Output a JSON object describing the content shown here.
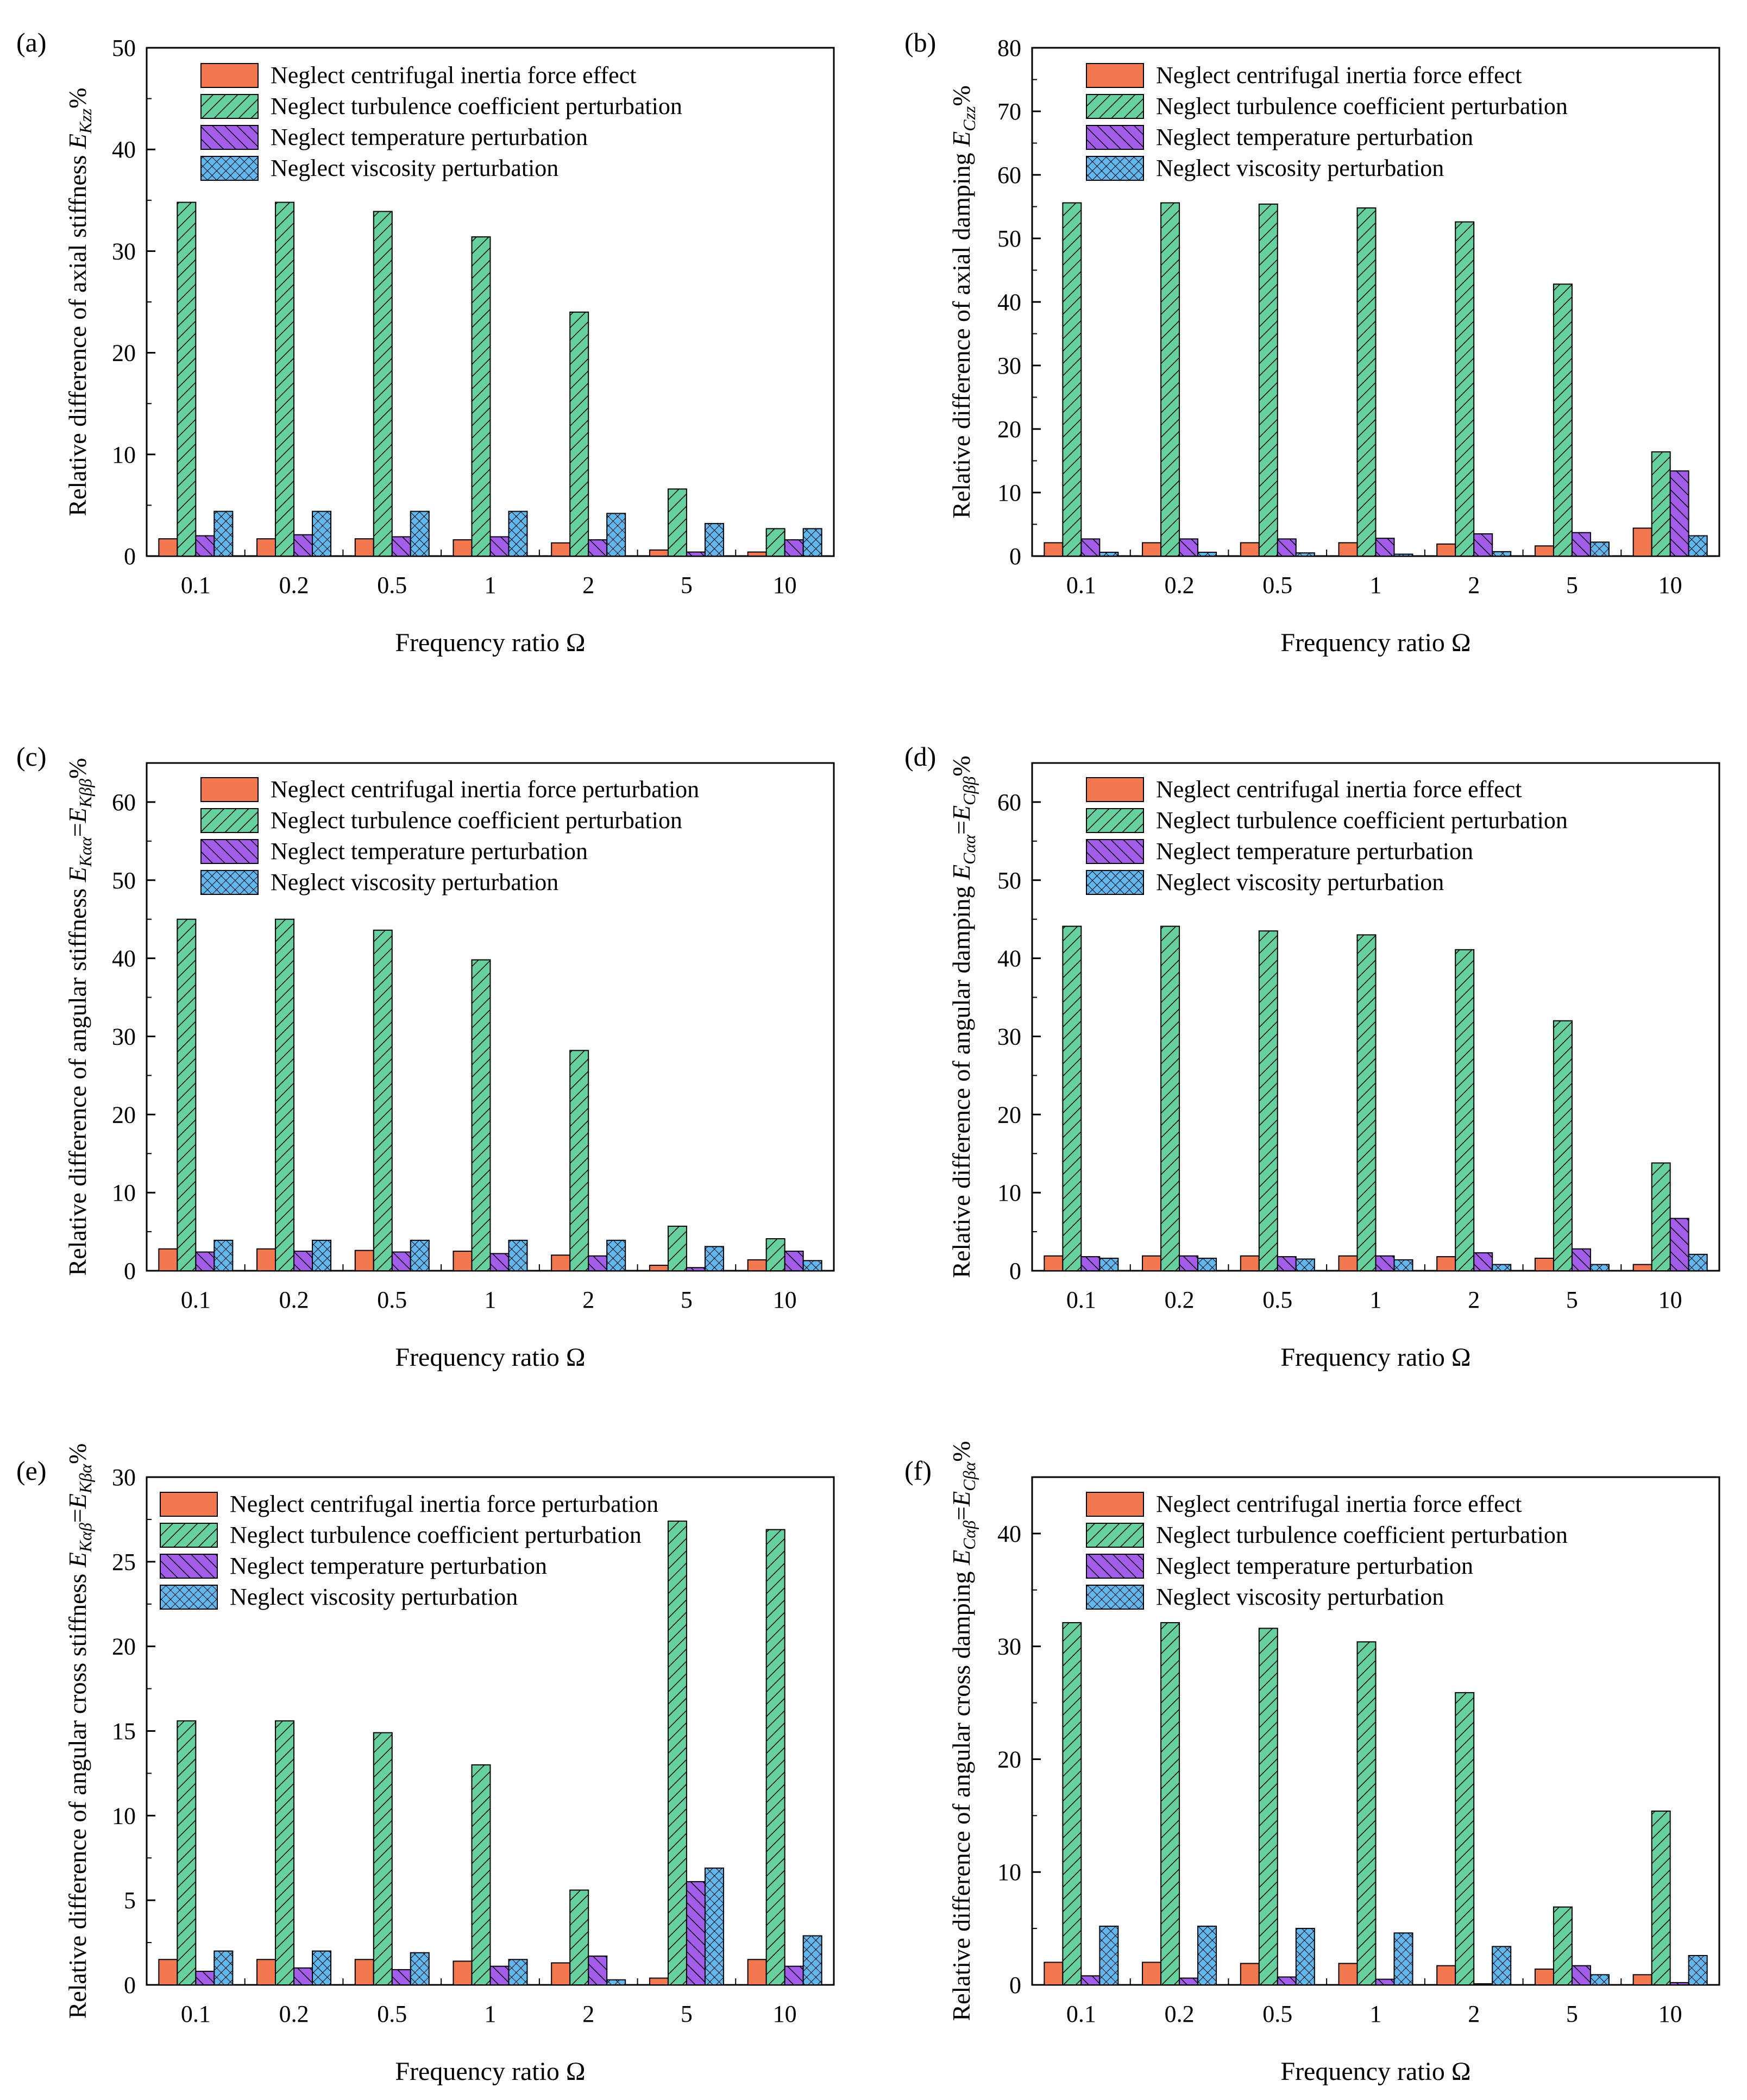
{
  "colors": {
    "series": [
      "#F4784F",
      "#66D19E",
      "#A45CEB",
      "#61B7F0"
    ],
    "stroke": "#000000"
  },
  "chart_data": [
    {
      "panel": "(a)",
      "type": "bar",
      "ylabel": "Relative difference of axial stiffness E",
      "ylabel_sub": "Kzz",
      "ylabel_suffix": "%",
      "xlabel": "Frequency ratio Ω",
      "categories": [
        "0.1",
        "0.2",
        "0.5",
        "1",
        "2",
        "5",
        "10"
      ],
      "ylim": [
        0,
        50
      ],
      "yticks": [
        0,
        10,
        20,
        30,
        40,
        50
      ],
      "legend_position": "top-right",
      "series": [
        {
          "name": "Neglect centrifugal inertia force effect",
          "values": [
            1.7,
            1.7,
            1.7,
            1.6,
            1.3,
            0.6,
            0.4
          ]
        },
        {
          "name": "Neglect turbulence coefficient perturbation",
          "values": [
            34.8,
            34.8,
            33.9,
            31.4,
            24.0,
            6.6,
            2.7
          ]
        },
        {
          "name": "Neglect temperature perturbation",
          "values": [
            2.0,
            2.1,
            1.9,
            1.9,
            1.6,
            0.4,
            1.6
          ]
        },
        {
          "name": "Neglect viscosity perturbation",
          "values": [
            4.4,
            4.4,
            4.4,
            4.4,
            4.2,
            3.2,
            2.7
          ]
        }
      ]
    },
    {
      "panel": "(b)",
      "type": "bar",
      "ylabel": "Relative difference of axial damping E",
      "ylabel_sub": "Czz",
      "ylabel_suffix": "%",
      "xlabel": "Frequency ratio Ω",
      "categories": [
        "0.1",
        "0.2",
        "0.5",
        "1",
        "2",
        "5",
        "10"
      ],
      "ylim": [
        0,
        80
      ],
      "yticks": [
        0,
        10,
        20,
        30,
        40,
        50,
        60,
        70,
        80
      ],
      "legend_position": "top-right",
      "series": [
        {
          "name": "Neglect centrifugal inertia force effect",
          "values": [
            2.1,
            2.1,
            2.1,
            2.1,
            1.9,
            1.6,
            4.4
          ]
        },
        {
          "name": "Neglect turbulence coefficient perturbation",
          "values": [
            55.6,
            55.6,
            55.4,
            54.8,
            52.6,
            42.8,
            16.4
          ]
        },
        {
          "name": "Neglect temperature perturbation",
          "values": [
            2.7,
            2.7,
            2.7,
            2.8,
            3.5,
            3.7,
            13.4
          ]
        },
        {
          "name": "Neglect viscosity perturbation",
          "values": [
            0.6,
            0.6,
            0.5,
            0.3,
            0.7,
            2.2,
            3.2
          ]
        }
      ]
    },
    {
      "panel": "(c)",
      "type": "bar",
      "ylabel": "Relative difference of  angular stiffness E",
      "ylabel_sub": "Kαα",
      "ylabel_mid": "=E",
      "ylabel_sub2": "Kββ",
      "ylabel_suffix": "%",
      "xlabel": "Frequency ratio Ω",
      "categories": [
        "0.1",
        "0.2",
        "0.5",
        "1",
        "2",
        "5",
        "10"
      ],
      "ylim": [
        0,
        65
      ],
      "yticks": [
        0,
        10,
        20,
        30,
        40,
        50,
        60
      ],
      "legend_position": "top-right",
      "series": [
        {
          "name": "Neglect centrifugal inertia force perturbation",
          "values": [
            2.8,
            2.8,
            2.6,
            2.5,
            2.0,
            0.7,
            1.4
          ]
        },
        {
          "name": "Neglect turbulence coefficient perturbation",
          "values": [
            45.0,
            45.0,
            43.6,
            39.8,
            28.2,
            5.7,
            4.1
          ]
        },
        {
          "name": "Neglect temperature perturbation",
          "values": [
            2.4,
            2.5,
            2.4,
            2.2,
            1.9,
            0.4,
            2.5
          ]
        },
        {
          "name": "Neglect viscosity perturbation",
          "values": [
            3.9,
            3.9,
            3.9,
            3.9,
            3.9,
            3.1,
            1.3
          ]
        }
      ]
    },
    {
      "panel": "(d)",
      "type": "bar",
      "ylabel": "Relative difference of angular damping E",
      "ylabel_sub": "Cαα",
      "ylabel_mid": "=E",
      "ylabel_sub2": "Cββ",
      "ylabel_suffix": "%",
      "xlabel": "Frequency ratio Ω",
      "categories": [
        "0.1",
        "0.2",
        "0.5",
        "1",
        "2",
        "5",
        "10"
      ],
      "ylim": [
        0,
        65
      ],
      "yticks": [
        0,
        10,
        20,
        30,
        40,
        50,
        60
      ],
      "legend_position": "top-right",
      "series": [
        {
          "name": "Neglect centrifugal inertia force effect",
          "values": [
            1.9,
            1.9,
            1.9,
            1.9,
            1.8,
            1.6,
            0.8
          ]
        },
        {
          "name": "Neglect turbulence coefficient perturbation",
          "values": [
            44.1,
            44.1,
            43.5,
            43.0,
            41.1,
            32.0,
            13.8
          ]
        },
        {
          "name": "Neglect temperature perturbation",
          "values": [
            1.8,
            1.9,
            1.8,
            1.9,
            2.3,
            2.8,
            6.7
          ]
        },
        {
          "name": "Neglect viscosity perturbation",
          "values": [
            1.6,
            1.6,
            1.5,
            1.4,
            0.8,
            0.8,
            2.1
          ]
        }
      ]
    },
    {
      "panel": "(e)",
      "type": "bar",
      "ylabel": "Relative difference of  angular cross stiffness E",
      "ylabel_sub": "Kαβ",
      "ylabel_mid": "=E",
      "ylabel_sub2": "Kβα",
      "ylabel_suffix": "%",
      "xlabel": "Frequency ratio Ω",
      "categories": [
        "0.1",
        "0.2",
        "0.5",
        "1",
        "2",
        "5",
        "10"
      ],
      "ylim": [
        0,
        30
      ],
      "yticks": [
        0,
        5,
        10,
        15,
        20,
        25,
        30
      ],
      "legend_position": "top-left",
      "series": [
        {
          "name": "Neglect centrifugal inertia force perturbation",
          "values": [
            1.5,
            1.5,
            1.5,
            1.4,
            1.3,
            0.4,
            1.5
          ]
        },
        {
          "name": "Neglect turbulence coefficient perturbation",
          "values": [
            15.6,
            15.6,
            14.9,
            13.0,
            5.6,
            27.4,
            26.9
          ]
        },
        {
          "name": "Neglect temperature perturbation",
          "values": [
            0.8,
            1.0,
            0.9,
            1.1,
            1.7,
            6.1,
            1.1
          ]
        },
        {
          "name": "Neglect viscosity perturbation",
          "values": [
            2.0,
            2.0,
            1.9,
            1.5,
            0.3,
            6.9,
            2.9
          ]
        }
      ]
    },
    {
      "panel": "(f)",
      "type": "bar",
      "ylabel": "Relative difference of  angular cross damping E",
      "ylabel_sub": "Cαβ",
      "ylabel_mid": "=E",
      "ylabel_sub2": "Cβα",
      "ylabel_suffix": "%",
      "xlabel": "Frequency ratio Ω",
      "categories": [
        "0.1",
        "0.2",
        "0.5",
        "1",
        "2",
        "5",
        "10"
      ],
      "ylim": [
        0,
        45
      ],
      "yticks": [
        0,
        10,
        20,
        30,
        40
      ],
      "legend_position": "top-right",
      "series": [
        {
          "name": "Neglect centrifugal inertia force effect",
          "values": [
            2.0,
            2.0,
            1.9,
            1.9,
            1.7,
            1.4,
            0.9
          ]
        },
        {
          "name": "Neglect turbulence coefficient perturbation",
          "values": [
            32.1,
            32.1,
            31.6,
            30.4,
            25.9,
            6.9,
            15.4
          ]
        },
        {
          "name": "Neglect temperature perturbation",
          "values": [
            0.8,
            0.6,
            0.7,
            0.5,
            0.1,
            1.7,
            0.2
          ]
        },
        {
          "name": "Neglect viscosity perturbation",
          "values": [
            5.2,
            5.2,
            5.0,
            4.6,
            3.4,
            0.9,
            2.6
          ]
        }
      ]
    }
  ]
}
